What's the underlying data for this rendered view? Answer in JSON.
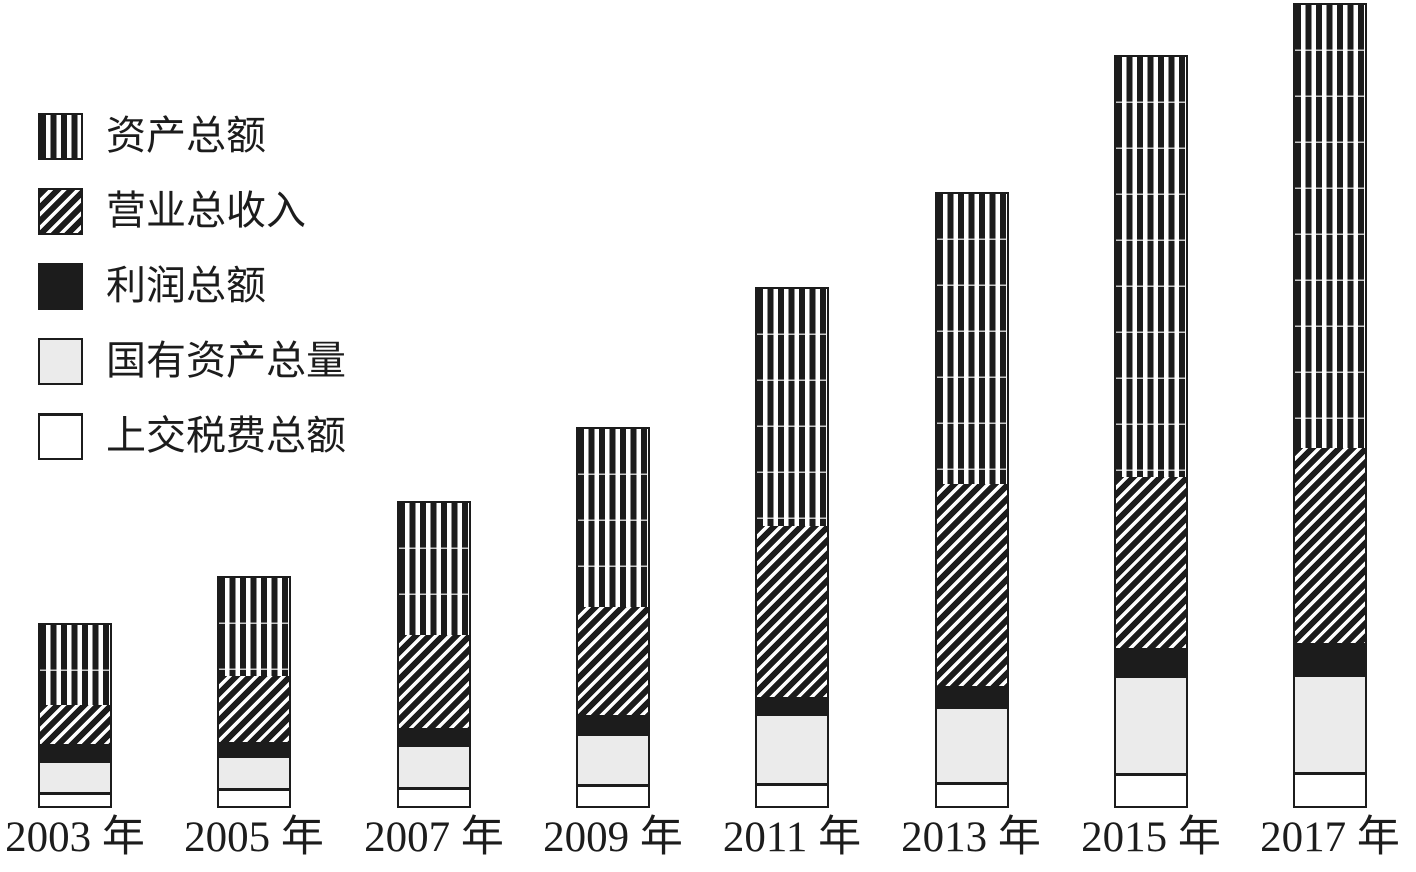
{
  "colors": {
    "ink": "#1c1c1c",
    "gray_fill": "#ebebeb",
    "white_fill": "#ffffff",
    "background": "#ffffff"
  },
  "legend": {
    "position": "top-left",
    "items": [
      {
        "label": "资产总额",
        "pattern": "vertical-stripes",
        "key": "total-assets"
      },
      {
        "label": "营业总收入",
        "pattern": "diagonal-stripes",
        "key": "operating-revenue"
      },
      {
        "label": "利润总额",
        "pattern": "solid-black",
        "key": "total-profit"
      },
      {
        "label": "国有资产总量",
        "pattern": "light-gray",
        "key": "state-owned-assets"
      },
      {
        "label": "上交税费总额",
        "pattern": "white",
        "key": "taxes-paid"
      }
    ]
  },
  "chart_data": {
    "type": "bar",
    "subtype": "stacked",
    "title": "",
    "xlabel": "",
    "ylabel": "",
    "value_axis_visible": false,
    "gridlines": "faint horizontal lines visible inside striped segments",
    "unit": "screenshot pixels (no numeric value axis shown)",
    "ylim": [
      0,
      805
    ],
    "categories": [
      "2003 年",
      "2005 年",
      "2007 年",
      "2009 年",
      "2011 年",
      "2013 年",
      "2015 年",
      "2017 年"
    ],
    "stack_order": "bottom to top as listed in series",
    "series": [
      {
        "name": "上交税费总额",
        "key": "taxes-paid",
        "pattern": "white",
        "values": [
          11,
          15,
          16,
          19,
          20,
          21,
          30,
          31
        ]
      },
      {
        "name": "国有资产总量",
        "key": "state-owned-assets",
        "pattern": "light-gray",
        "values": [
          29,
          30,
          40,
          48,
          67,
          73,
          95,
          95
        ]
      },
      {
        "name": "利润总额",
        "key": "total-profit",
        "pattern": "solid-black",
        "values": [
          19,
          16,
          19,
          21,
          19,
          23,
          30,
          34
        ]
      },
      {
        "name": "营业总收入",
        "key": "operating-revenue",
        "pattern": "diagonal-stripes",
        "values": [
          39,
          66,
          93,
          108,
          171,
          202,
          171,
          195
        ]
      },
      {
        "name": "资产总额",
        "key": "total-assets",
        "pattern": "vertical-stripes",
        "values": [
          87,
          105,
          139,
          185,
          244,
          297,
          427,
          450
        ]
      }
    ],
    "stack_totals": [
      185,
      232,
      307,
      381,
      521,
      616,
      753,
      805
    ]
  }
}
